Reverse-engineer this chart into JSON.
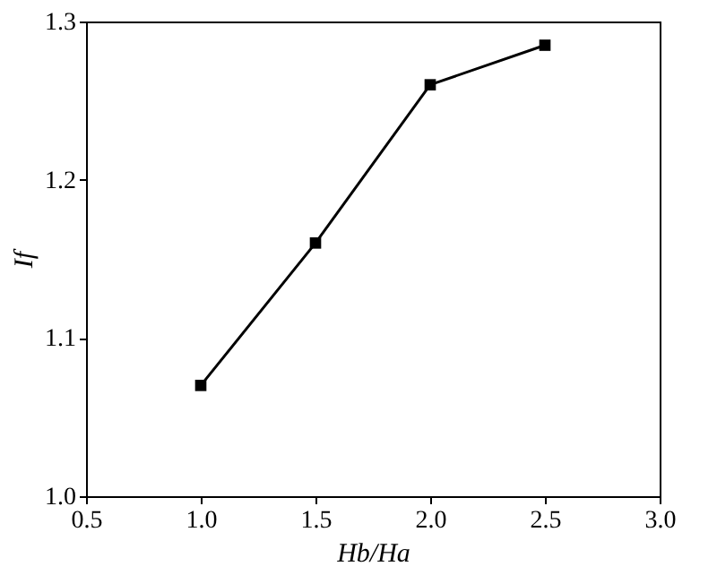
{
  "chart_data": {
    "type": "line",
    "xlabel": "Hb/Ha",
    "ylabel": "If",
    "x": [
      1.0,
      1.5,
      2.0,
      2.5
    ],
    "series": [
      {
        "color": "#000000",
        "values": [
          1.07,
          1.16,
          1.26,
          1.285
        ]
      }
    ],
    "xlim": [
      0.5,
      3.0
    ],
    "xticks": [
      0.5,
      {
        "value": 1.0,
        "label": "1.0"
      },
      1.5,
      {
        "value": 2.0,
        "label": "2.0"
      },
      2.5,
      {
        "value": 3.0,
        "label": "3.0"
      }
    ],
    "ylim": [
      1.0,
      1.3
    ],
    "yticks": [
      {
        "value": 1.0,
        "label": "1.0"
      },
      1.1,
      1.2,
      1.3
    ],
    "grid": false,
    "marker": "square",
    "line_style": "solid"
  }
}
